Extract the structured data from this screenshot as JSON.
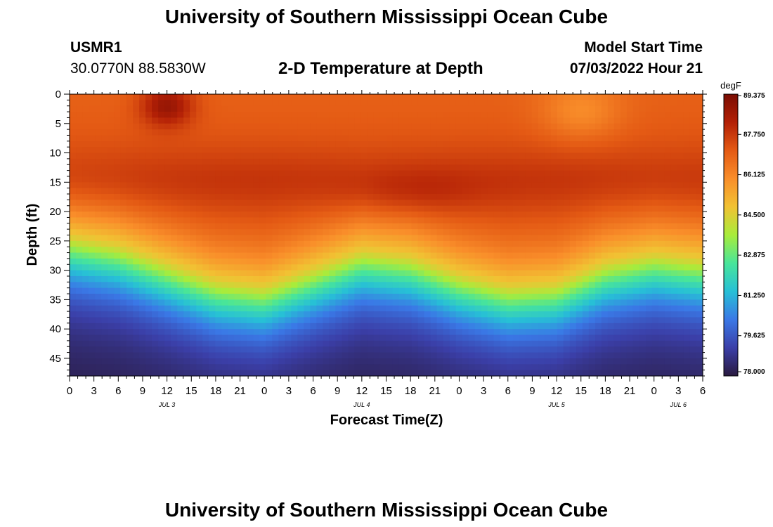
{
  "page_title": "University of Southern Mississippi Ocean Cube",
  "footer_title": "University of Southern Mississippi Ocean Cube",
  "station": {
    "name": "USMR1",
    "coordinates": "30.0770N  88.5830W"
  },
  "model_start": {
    "label": "Model Start Time",
    "value": "07/03/2022 Hour 21"
  },
  "chart_data": {
    "type": "heatmap",
    "title": "2-D Temperature at Depth",
    "xlabel": "Forecast Time(Z)",
    "ylabel": "Depth (ft)",
    "x_range_hours": [
      0,
      78
    ],
    "y_range_ft": [
      0,
      48
    ],
    "x_tick_values": [
      0,
      3,
      6,
      9,
      12,
      15,
      18,
      21,
      24,
      27,
      30,
      33,
      36,
      39,
      42,
      45,
      48,
      51,
      54,
      57,
      60,
      63,
      66,
      69,
      72,
      75,
      78
    ],
    "x_tick_labels": [
      "0",
      "3",
      "6",
      "9",
      "12",
      "15",
      "18",
      "21",
      "0",
      "3",
      "6",
      "9",
      "12",
      "15",
      "18",
      "21",
      "0",
      "3",
      "6",
      "9",
      "12",
      "15",
      "18",
      "21",
      "0",
      "3",
      "6"
    ],
    "y_tick_values": [
      0,
      5,
      10,
      15,
      20,
      25,
      30,
      35,
      40,
      45
    ],
    "y_tick_labels": [
      "0",
      "5",
      "10",
      "15",
      "20",
      "25",
      "30",
      "35",
      "40",
      "45"
    ],
    "date_labels": [
      {
        "hour": 12,
        "label": "JUL 3"
      },
      {
        "hour": 36,
        "label": "JUL 4"
      },
      {
        "hour": 60,
        "label": "JUL 5"
      },
      {
        "hour": 75,
        "label": "JUL 6"
      }
    ],
    "thermocline_depth_ft_by_hour": [
      {
        "hour": 0,
        "depth": 24.5
      },
      {
        "hour": 6,
        "depth": 26
      },
      {
        "hour": 12,
        "depth": 29
      },
      {
        "hour": 18,
        "depth": 32
      },
      {
        "hour": 24,
        "depth": 33
      },
      {
        "hour": 30,
        "depth": 30
      },
      {
        "hour": 36,
        "depth": 27
      },
      {
        "hour": 42,
        "depth": 28
      },
      {
        "hour": 48,
        "depth": 31
      },
      {
        "hour": 54,
        "depth": 33
      },
      {
        "hour": 60,
        "depth": 32.5
      },
      {
        "hour": 66,
        "depth": 29
      },
      {
        "hour": 72,
        "depth": 27.5
      },
      {
        "hour": 78,
        "depth": 28.5
      }
    ],
    "colorbar": {
      "unit": "degF",
      "min": 78.0,
      "max": 89.375,
      "tick_labels": [
        "89.375",
        "87.750",
        "86.125",
        "84.500",
        "82.875",
        "81.250",
        "79.625",
        "78.000"
      ],
      "palette": [
        "#2a1a3f",
        "#3b3fa8",
        "#3a78e6",
        "#27c0d6",
        "#48e59a",
        "#a8ec3b",
        "#f1c233",
        "#f98e2a",
        "#e45a14",
        "#b32006",
        "#7a0d03"
      ]
    }
  }
}
